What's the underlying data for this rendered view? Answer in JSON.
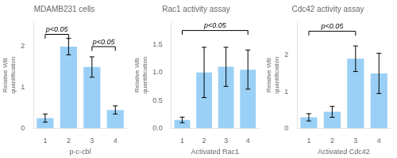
{
  "chart_data": [
    {
      "type": "bar",
      "title": "MDAMB231 cells",
      "categories": [
        "1",
        "2",
        "3",
        "4"
      ],
      "values": [
        0.25,
        2.0,
        1.5,
        0.45
      ],
      "errors": [
        0.1,
        0.2,
        0.25,
        0.1
      ],
      "xlabel": "p-c-cbl",
      "ylabel": "Relative WB\nquantification",
      "ylim": [
        0,
        2.6
      ],
      "yticks": [
        0,
        1,
        2
      ],
      "grid": false,
      "annotations": [
        {
          "x1": 1,
          "x2": 2,
          "y": 2.3,
          "label": "p<0.05"
        },
        {
          "x1": 3,
          "x2": 4,
          "y": 2.0,
          "label": "p<0.05"
        }
      ]
    },
    {
      "type": "bar",
      "title": "Rac1 activity assay",
      "categories": [
        "1",
        "2",
        "3",
        "4"
      ],
      "values": [
        0.15,
        1.0,
        1.1,
        1.05
      ],
      "errors": [
        0.05,
        0.45,
        0.35,
        0.35
      ],
      "xlabel": "Activated Rac1",
      "ylabel": "Relative WB\nquantification",
      "ylim": [
        0,
        1.9
      ],
      "yticks": [
        {
          "value": 0,
          "label": "0.0"
        },
        0.5,
        {
          "value": 1,
          "label": "1.0"
        },
        1.5
      ],
      "grid": false,
      "annotations": [
        {
          "x1": 1,
          "x2": 4,
          "y": 1.75,
          "label": "p<0.05"
        }
      ]
    },
    {
      "type": "bar",
      "title": "Cdc42 activity assay",
      "categories": [
        "1",
        "2",
        "3",
        "4"
      ],
      "values": [
        0.3,
        0.45,
        1.9,
        1.5
      ],
      "errors": [
        0.1,
        0.15,
        0.35,
        0.55
      ],
      "xlabel": "Activated Cdc42",
      "ylabel": "Relative WB\nquantification",
      "ylim": [
        0,
        2.9
      ],
      "yticks": [
        0,
        1,
        2
      ],
      "grid": false,
      "annotations": [
        {
          "x1": 1,
          "x2": 3,
          "y": 2.65,
          "label": "p<0.05"
        }
      ]
    }
  ]
}
